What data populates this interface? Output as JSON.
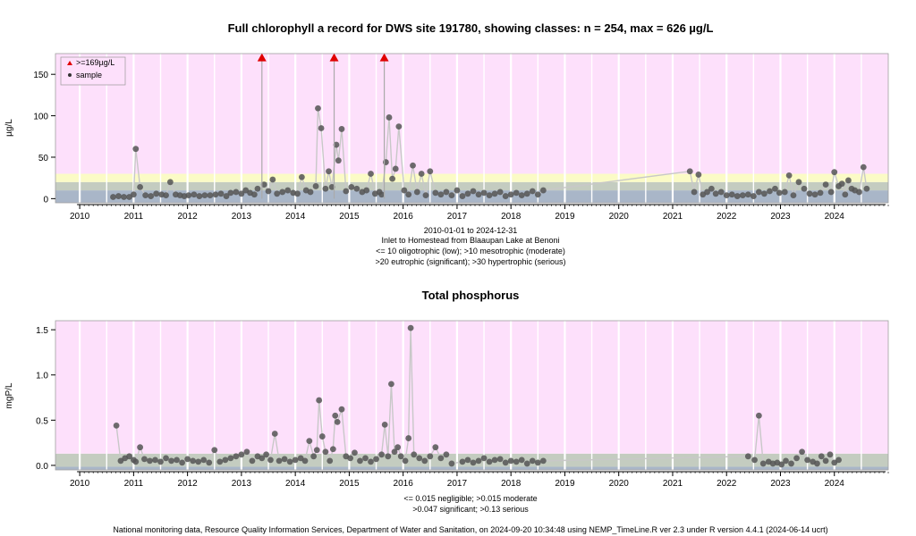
{
  "chart_data": [
    {
      "type": "scatter",
      "title": "Full chlorophyll a record for DWS site 191780, showing classes: n = 254, max = 626 µg/L",
      "ylabel": "µg/L",
      "xlim": [
        2009.55,
        2025.0
      ],
      "ylim": [
        -5,
        175
      ],
      "y_ticks": [
        0,
        50,
        100,
        150
      ],
      "x_ticks": [
        "2010",
        "2011",
        "2012",
        "2013",
        "2014",
        "2015",
        "2016",
        "2017",
        "2018",
        "2019",
        "2020",
        "2021",
        "2022",
        "2023",
        "2024"
      ],
      "grid": true,
      "legend_position": "top-left",
      "legend": [
        {
          "label": ">=169µg/L",
          "marker": "triangle",
          "color": "#e00000"
        },
        {
          "label": "sample",
          "marker": "circle",
          "color": "#333333"
        }
      ],
      "class_bands": [
        {
          "from": -5,
          "to": 10,
          "color": "#a9b6c8"
        },
        {
          "from": 10,
          "to": 20,
          "color": "#c4ccc0"
        },
        {
          "from": 20,
          "to": 30,
          "color": "#fbfbc6"
        },
        {
          "from": 30,
          "to": 175,
          "color": "#fde0fb"
        }
      ],
      "caption_lines": [
        "2010-01-01 to 2024-12-31",
        "Inlet to Homestead from Blaaupan Lake at Benoni",
        "<= 10 oligotrophic (low); >10 mesotrophic (moderate)",
        ">20 eutrophic (significant); >30 hypertrophic (serious)"
      ],
      "exceedances": {
        "x": [
          2013.38,
          2014.72,
          2015.65
        ],
        "y": [
          169,
          169,
          169
        ]
      },
      "series": [
        {
          "x": [
            2010.62,
            2010.72,
            2010.82,
            2010.92,
            2011.0,
            2011.04,
            2011.12,
            2011.22,
            2011.32,
            2011.42,
            2011.52,
            2011.6,
            2011.68,
            2011.78,
            2011.86,
            2011.94,
            2012.02,
            2012.12,
            2012.22,
            2012.32,
            2012.42,
            2012.52,
            2012.62,
            2012.72,
            2012.8,
            2012.9,
            2013.0,
            2013.08,
            2013.16,
            2013.24,
            2013.3,
            2013.42,
            2013.5,
            2013.58,
            2013.66,
            2013.76,
            2013.86,
            2013.96,
            2014.04,
            2014.12,
            2014.2,
            2014.28,
            2014.38,
            2014.42,
            2014.48,
            2014.56,
            2014.62,
            2014.68,
            2014.76,
            2014.8,
            2014.86,
            2014.94,
            2015.04,
            2015.14,
            2015.24,
            2015.32,
            2015.4,
            2015.48,
            2015.56,
            2015.6,
            2015.68,
            2015.74,
            2015.8,
            2015.86,
            2015.92,
            2016.02,
            2016.1,
            2016.18,
            2016.26,
            2016.34,
            2016.42,
            2016.5,
            2016.6,
            2016.7,
            2016.8,
            2016.9,
            2017.0,
            2017.1,
            2017.2,
            2017.3,
            2017.4,
            2017.5,
            2017.6,
            2017.7,
            2017.8,
            2017.9,
            2018.0,
            2018.1,
            2018.2,
            2018.3,
            2018.4,
            2018.5,
            2018.6,
            2021.32,
            2021.4,
            2021.48,
            2021.56,
            2021.64,
            2021.72,
            2021.8,
            2021.9,
            2022.0,
            2022.1,
            2022.2,
            2022.3,
            2022.4,
            2022.5,
            2022.6,
            2022.7,
            2022.8,
            2022.9,
            2022.98,
            2023.08,
            2023.16,
            2023.24,
            2023.34,
            2023.44,
            2023.54,
            2023.64,
            2023.74,
            2023.84,
            2023.94,
            2024.0,
            2024.08,
            2024.14,
            2024.2,
            2024.26,
            2024.32,
            2024.38,
            2024.46,
            2024.54,
            2024.6
          ],
          "y": [
            2,
            3,
            2,
            2,
            5,
            60,
            14,
            4,
            3,
            6,
            5,
            4,
            20,
            5,
            4,
            3,
            4,
            5,
            3,
            4,
            4,
            5,
            6,
            3,
            7,
            8,
            6,
            10,
            7,
            5,
            12,
            17,
            9,
            23,
            6,
            8,
            10,
            7,
            6,
            26,
            10,
            8,
            15,
            109,
            85,
            12,
            33,
            14,
            65,
            46,
            84,
            9,
            14,
            12,
            8,
            10,
            30,
            6,
            8,
            5,
            44,
            98,
            24,
            36,
            87,
            10,
            5,
            40,
            8,
            30,
            4,
            33,
            7,
            5,
            8,
            4,
            10,
            3,
            6,
            9,
            5,
            7,
            4,
            6,
            8,
            3,
            5,
            7,
            4,
            6,
            9,
            5,
            10,
            33,
            8,
            29,
            5,
            8,
            12,
            6,
            8,
            4,
            5,
            3,
            4,
            5,
            3,
            8,
            6,
            9,
            12,
            7,
            8,
            28,
            4,
            20,
            12,
            6,
            5,
            7,
            17,
            8,
            32,
            15,
            18,
            5,
            22,
            12,
            10,
            8,
            38,
            12
          ]
        }
      ]
    },
    {
      "type": "scatter",
      "title": "Total phosphorus",
      "ylabel": "mgP/L",
      "xlim": [
        2009.55,
        2025.0
      ],
      "ylim": [
        -0.05,
        1.6
      ],
      "y_ticks": [
        0.0,
        0.5,
        1.0,
        1.5
      ],
      "x_ticks": [
        "2010",
        "2011",
        "2012",
        "2013",
        "2014",
        "2015",
        "2016",
        "2017",
        "2018",
        "2019",
        "2020",
        "2021",
        "2022",
        "2023",
        "2024"
      ],
      "grid": true,
      "class_bands": [
        {
          "from": -0.05,
          "to": -0.015,
          "color": "#a9b6c8"
        },
        {
          "from": -0.015,
          "to": 0.13,
          "color": "#c4ccc0"
        },
        {
          "from": 0.13,
          "to": 1.6,
          "color": "#fde0fb"
        }
      ],
      "caption_lines": [
        "<= 0.015 negligible; >0.015 moderate",
        ">0.047 significant; >0.13 serious"
      ],
      "series": [
        {
          "x": [
            2010.68,
            2010.76,
            2010.84,
            2010.92,
            2011.0,
            2011.04,
            2011.12,
            2011.2,
            2011.3,
            2011.4,
            2011.5,
            2011.6,
            2011.7,
            2011.8,
            2011.9,
            2012.0,
            2012.1,
            2012.2,
            2012.3,
            2012.4,
            2012.5,
            2012.6,
            2012.7,
            2012.8,
            2012.9,
            2013.0,
            2013.1,
            2013.2,
            2013.3,
            2013.38,
            2013.46,
            2013.54,
            2013.62,
            2013.7,
            2013.8,
            2013.9,
            2014.0,
            2014.1,
            2014.18,
            2014.26,
            2014.34,
            2014.4,
            2014.44,
            2014.5,
            2014.56,
            2014.64,
            2014.7,
            2014.74,
            2014.78,
            2014.86,
            2014.94,
            2015.02,
            2015.1,
            2015.2,
            2015.3,
            2015.4,
            2015.5,
            2015.6,
            2015.66,
            2015.72,
            2015.78,
            2015.84,
            2015.9,
            2015.96,
            2016.04,
            2016.1,
            2016.14,
            2016.2,
            2016.3,
            2016.4,
            2016.5,
            2016.6,
            2016.7,
            2016.8,
            2016.9,
            2017.1,
            2017.2,
            2017.3,
            2017.4,
            2017.5,
            2017.6,
            2017.7,
            2017.8,
            2017.9,
            2018.0,
            2018.1,
            2018.2,
            2018.3,
            2018.4,
            2018.5,
            2018.6,
            2022.4,
            2022.52,
            2022.6,
            2022.68,
            2022.78,
            2022.86,
            2022.94,
            2023.02,
            2023.1,
            2023.2,
            2023.3,
            2023.4,
            2023.5,
            2023.6,
            2023.68,
            2023.76,
            2023.84,
            2023.92,
            2024.0,
            2024.08
          ],
          "y": [
            0.44,
            0.05,
            0.08,
            0.1,
            0.06,
            0.04,
            0.2,
            0.07,
            0.05,
            0.06,
            0.04,
            0.08,
            0.05,
            0.06,
            0.03,
            0.07,
            0.05,
            0.04,
            0.06,
            0.03,
            0.17,
            0.04,
            0.06,
            0.08,
            0.1,
            0.12,
            0.15,
            0.05,
            0.1,
            0.08,
            0.12,
            0.06,
            0.35,
            0.05,
            0.07,
            0.04,
            0.06,
            0.08,
            0.05,
            0.27,
            0.1,
            0.17,
            0.72,
            0.32,
            0.15,
            0.05,
            0.18,
            0.55,
            0.48,
            0.62,
            0.1,
            0.08,
            0.14,
            0.05,
            0.08,
            0.04,
            0.07,
            0.12,
            0.45,
            0.1,
            0.9,
            0.15,
            0.2,
            0.1,
            0.05,
            0.3,
            1.52,
            0.12,
            0.08,
            0.05,
            0.1,
            0.2,
            0.08,
            0.12,
            0.02,
            0.04,
            0.06,
            0.03,
            0.05,
            0.08,
            0.04,
            0.06,
            0.07,
            0.03,
            0.05,
            0.04,
            0.06,
            0.02,
            0.05,
            0.03,
            0.05,
            0.1,
            0.06,
            0.55,
            0.02,
            0.04,
            0.02,
            0.03,
            0.01,
            0.05,
            0.02,
            0.08,
            0.15,
            0.06,
            0.04,
            0.02,
            0.1,
            0.05,
            0.12,
            0.03,
            0.06
          ]
        }
      ]
    }
  ],
  "footer": "National monitoring data, Resource Quality Information Services, Department of Water and Sanitation, on 2024-09-20 10:34:48 using NEMP_TimeLine.R ver 2.3 under R version 4.4.1 (2024-06-14 ucrt)"
}
